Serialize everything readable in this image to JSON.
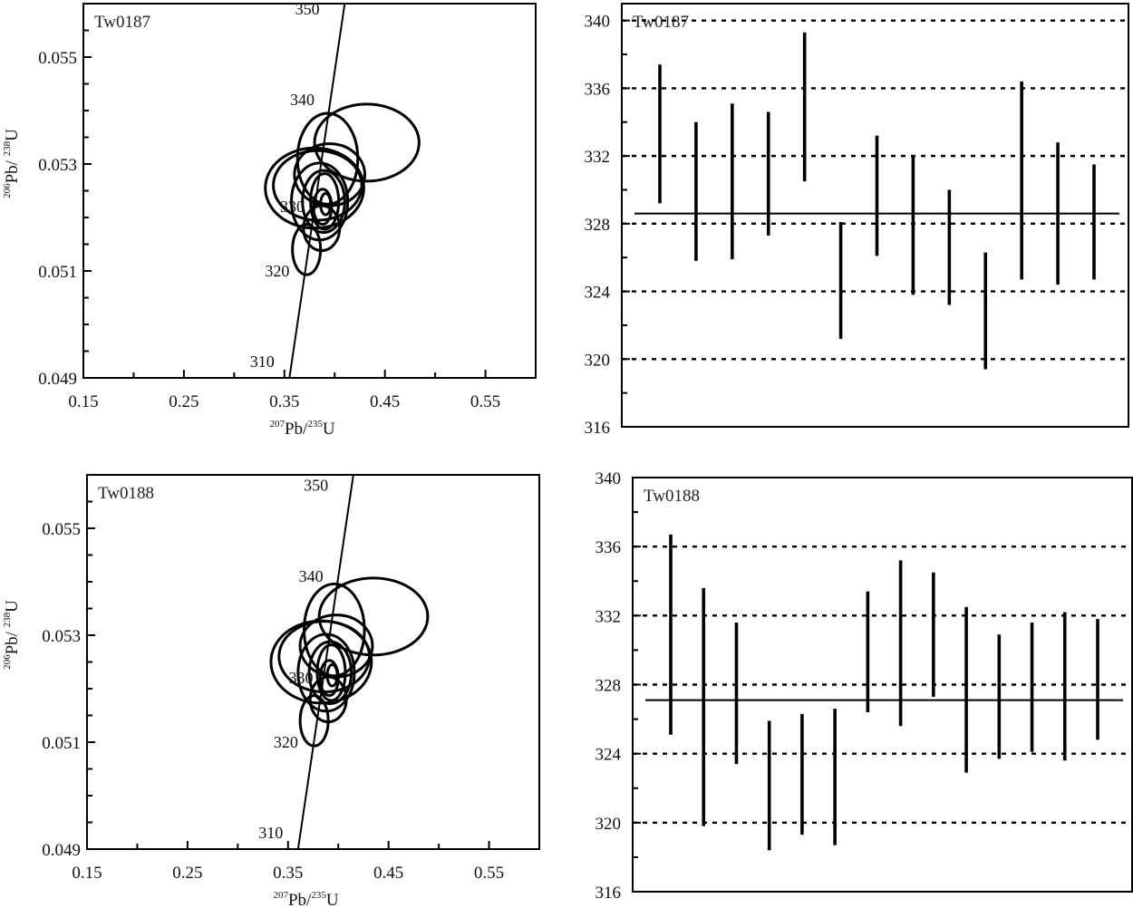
{
  "chart_data": [
    {
      "type": "scatter",
      "subtype": "concordia",
      "sample": "Tw0187",
      "xlabel_parts": [
        "207",
        "Pb/",
        "235",
        "U"
      ],
      "ylabel_parts": [
        "206",
        "Pb/ ",
        "238",
        "U"
      ],
      "xlim": [
        0.15,
        0.6
      ],
      "ylim": [
        0.049,
        0.056
      ],
      "xticks": [
        "0.15",
        "0.25",
        "0.35",
        "0.45",
        "0.55"
      ],
      "yticks": [
        "0.049",
        "0.051",
        "0.053",
        "0.055"
      ],
      "concordia_line": {
        "x": [
          0.355,
          0.41
        ],
        "y": [
          0.049,
          0.056
        ]
      },
      "age_labels": [
        {
          "text": "350",
          "x": 0.385,
          "y": 0.0558
        },
        {
          "text": "340",
          "x": 0.38,
          "y": 0.0541
        },
        {
          "text": "330",
          "x": 0.37,
          "y": 0.0521
        },
        {
          "text": "320",
          "x": 0.355,
          "y": 0.0509
        },
        {
          "text": "310",
          "x": 0.34,
          "y": 0.0492
        }
      ],
      "ellipses": [
        {
          "cx": 0.432,
          "cy": 0.0534,
          "rx": 0.052,
          "ry": 0.00072
        },
        {
          "cx": 0.38,
          "cy": 0.05255,
          "rx": 0.049,
          "ry": 0.00075
        },
        {
          "cx": 0.383,
          "cy": 0.0526,
          "rx": 0.044,
          "ry": 0.00065
        },
        {
          "cx": 0.395,
          "cy": 0.0528,
          "rx": 0.035,
          "ry": 0.00058
        },
        {
          "cx": 0.393,
          "cy": 0.0531,
          "rx": 0.03,
          "ry": 0.00085
        },
        {
          "cx": 0.385,
          "cy": 0.0523,
          "rx": 0.028,
          "ry": 0.00072
        },
        {
          "cx": 0.389,
          "cy": 0.0523,
          "rx": 0.021,
          "ry": 0.00058
        },
        {
          "cx": 0.39,
          "cy": 0.0523,
          "rx": 0.014,
          "ry": 0.00052
        },
        {
          "cx": 0.388,
          "cy": 0.0522,
          "rx": 0.009,
          "ry": 0.00033
        },
        {
          "cx": 0.391,
          "cy": 0.05225,
          "rx": 0.005,
          "ry": 0.0002
        },
        {
          "cx": 0.372,
          "cy": 0.0514,
          "rx": 0.014,
          "ry": 0.00047
        },
        {
          "cx": 0.387,
          "cy": 0.0518,
          "rx": 0.018,
          "ry": 0.00042
        }
      ]
    },
    {
      "type": "bar",
      "subtype": "error-bar",
      "sample": "Tw0187",
      "ylim": [
        316,
        341
      ],
      "yticks": [
        "316",
        "320",
        "324",
        "328",
        "332",
        "336",
        "340"
      ],
      "gridlines": [
        320,
        324,
        328,
        332,
        336,
        340
      ],
      "mean": 328.6,
      "bars": [
        {
          "low": 329.2,
          "high": 337.4
        },
        {
          "low": 325.8,
          "high": 334.0
        },
        {
          "low": 325.9,
          "high": 335.1
        },
        {
          "low": 327.3,
          "high": 334.6
        },
        {
          "low": 330.5,
          "high": 339.3
        },
        {
          "low": 321.2,
          "high": 328.1
        },
        {
          "low": 326.1,
          "high": 333.2
        },
        {
          "low": 323.8,
          "high": 332.0
        },
        {
          "low": 323.2,
          "high": 330.0
        },
        {
          "low": 319.4,
          "high": 326.3
        },
        {
          "low": 324.7,
          "high": 336.4
        },
        {
          "low": 324.4,
          "high": 332.8
        },
        {
          "low": 324.7,
          "high": 331.5
        }
      ]
    },
    {
      "type": "scatter",
      "subtype": "concordia",
      "sample": "Tw0188",
      "xlabel_parts": [
        "207",
        "Pb/",
        "235",
        "U"
      ],
      "ylabel_parts": [
        "206",
        "Pb/ ",
        "238",
        "U"
      ],
      "xlim": [
        0.15,
        0.6
      ],
      "ylim": [
        0.049,
        0.056
      ],
      "xticks": [
        "0.15",
        "0.25",
        "0.35",
        "0.45",
        "0.55"
      ],
      "yticks": [
        "0.049",
        "0.051",
        "0.053",
        "0.055"
      ],
      "concordia_line": {
        "x": [
          0.36,
          0.415
        ],
        "y": [
          0.049,
          0.056
        ]
      },
      "age_labels": [
        {
          "text": "350",
          "x": 0.39,
          "y": 0.0557
        },
        {
          "text": "340",
          "x": 0.385,
          "y": 0.054
        },
        {
          "text": "330",
          "x": 0.375,
          "y": 0.0521
        },
        {
          "text": "320",
          "x": 0.36,
          "y": 0.0509
        },
        {
          "text": "310",
          "x": 0.345,
          "y": 0.0492
        }
      ],
      "ellipses": [
        {
          "cx": 0.435,
          "cy": 0.05335,
          "rx": 0.054,
          "ry": 0.00072
        },
        {
          "cx": 0.383,
          "cy": 0.0525,
          "rx": 0.05,
          "ry": 0.00077
        },
        {
          "cx": 0.386,
          "cy": 0.0526,
          "rx": 0.045,
          "ry": 0.00066
        },
        {
          "cx": 0.398,
          "cy": 0.0528,
          "rx": 0.036,
          "ry": 0.00058
        },
        {
          "cx": 0.396,
          "cy": 0.0531,
          "rx": 0.03,
          "ry": 0.00086
        },
        {
          "cx": 0.388,
          "cy": 0.0523,
          "rx": 0.028,
          "ry": 0.00072
        },
        {
          "cx": 0.392,
          "cy": 0.0523,
          "rx": 0.021,
          "ry": 0.00058
        },
        {
          "cx": 0.393,
          "cy": 0.0523,
          "rx": 0.014,
          "ry": 0.00052
        },
        {
          "cx": 0.391,
          "cy": 0.0522,
          "rx": 0.009,
          "ry": 0.00033
        },
        {
          "cx": 0.394,
          "cy": 0.05225,
          "rx": 0.005,
          "ry": 0.0002
        },
        {
          "cx": 0.376,
          "cy": 0.0514,
          "rx": 0.014,
          "ry": 0.00047
        },
        {
          "cx": 0.39,
          "cy": 0.0518,
          "rx": 0.018,
          "ry": 0.00042
        }
      ]
    },
    {
      "type": "bar",
      "subtype": "error-bar",
      "sample": "Tw0188",
      "ylim": [
        316,
        340
      ],
      "yticks": [
        "316",
        "320",
        "324",
        "328",
        "332",
        "336",
        "340"
      ],
      "gridlines": [
        320,
        324,
        328,
        332,
        336
      ],
      "mean": 327.1,
      "bars": [
        {
          "low": 325.1,
          "high": 336.7
        },
        {
          "low": 319.8,
          "high": 333.6
        },
        {
          "low": 323.4,
          "high": 331.6
        },
        {
          "low": 318.4,
          "high": 325.9
        },
        {
          "low": 319.3,
          "high": 326.3
        },
        {
          "low": 318.7,
          "high": 326.6
        },
        {
          "low": 326.4,
          "high": 333.4
        },
        {
          "low": 325.6,
          "high": 335.2
        },
        {
          "low": 327.3,
          "high": 334.5
        },
        {
          "low": 322.9,
          "high": 332.5
        },
        {
          "low": 323.7,
          "high": 330.9
        },
        {
          "low": 324.1,
          "high": 331.6
        },
        {
          "low": 323.6,
          "high": 332.2
        },
        {
          "low": 324.8,
          "high": 331.8
        }
      ]
    }
  ]
}
